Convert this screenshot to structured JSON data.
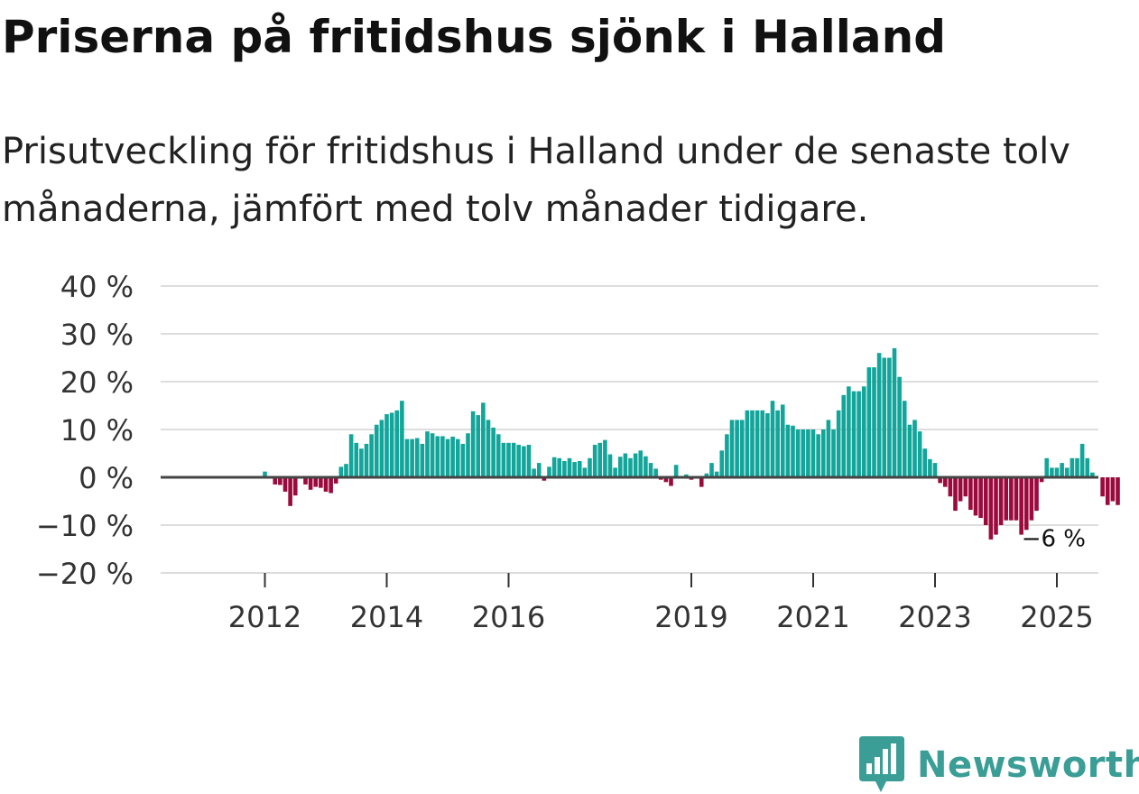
{
  "header": {
    "title": "Priserna på fritidshus sjönk i Halland",
    "subtitle": "Prisutveckling för fritidshus i Halland under de senaste tolv månaderna, jämfört med tolv månader tidigare."
  },
  "branding": {
    "name": "Newsworthy",
    "color": "#3a9d96"
  },
  "colors": {
    "positive": "#12a59a",
    "negative": "#9b0a3c",
    "zero_line": "#444444",
    "grid": "#dddddd"
  },
  "chart_data": {
    "type": "bar",
    "title": "Priserna på fritidshus sjönk i Halland",
    "xlabel": "",
    "ylabel": "",
    "unit": "%",
    "ylim": [
      -20,
      40
    ],
    "y_ticks": [
      {
        "value": 40,
        "label": "40 %"
      },
      {
        "value": 30,
        "label": "30 %"
      },
      {
        "value": 20,
        "label": "20 %"
      },
      {
        "value": 10,
        "label": "10 %"
      },
      {
        "value": 0,
        "label": "0 %"
      },
      {
        "value": -10,
        "label": "−10 %"
      },
      {
        "value": -20,
        "label": "−20 %"
      }
    ],
    "x_ticks": [
      {
        "index": 12,
        "label": "2012"
      },
      {
        "index": 36,
        "label": "2014"
      },
      {
        "index": 60,
        "label": "2016"
      },
      {
        "index": 96,
        "label": "2019"
      },
      {
        "index": 120,
        "label": "2021"
      },
      {
        "index": 144,
        "label": "2023"
      },
      {
        "index": 168,
        "label": "2025"
      }
    ],
    "start": "2011-01",
    "series": [
      {
        "name": "Prisutveckling",
        "values": [
          null,
          null,
          null,
          null,
          null,
          null,
          null,
          null,
          null,
          null,
          null,
          null,
          1.2,
          0,
          -1.5,
          -1.6,
          -3,
          -6,
          -3.8,
          0,
          -1.5,
          -2.6,
          -2,
          -2.2,
          -3,
          -3.3,
          -1.3,
          2.2,
          2.8,
          9,
          7.2,
          6,
          7,
          9,
          11,
          12,
          13.2,
          13.5,
          14,
          16,
          8,
          8,
          8.2,
          7,
          9.6,
          9.2,
          8.6,
          8.6,
          8,
          8.5,
          8,
          7,
          9.2,
          13.8,
          13,
          15.6,
          12,
          10.4,
          9,
          7.2,
          7.2,
          7.2,
          6.8,
          6.5,
          6.8,
          1.8,
          3,
          -0.7,
          2.2,
          4.2,
          4,
          3.4,
          4,
          3.2,
          3.4,
          2,
          4,
          6.8,
          7.2,
          7.8,
          4.8,
          2,
          4.3,
          5,
          4,
          5,
          5.6,
          4.4,
          3,
          1.8,
          -0.5,
          -1,
          -1.8,
          2.6,
          0,
          0.6,
          -0.5,
          0,
          -2,
          0.8,
          3,
          1.2,
          5.6,
          9,
          12,
          12,
          12,
          14,
          14,
          14,
          14,
          13.4,
          16,
          14,
          15.2,
          11,
          10.8,
          10,
          10,
          10,
          10,
          9,
          10,
          12,
          10,
          14,
          17.2,
          19,
          18,
          18,
          19,
          23,
          23,
          26,
          25,
          25,
          27,
          21,
          16,
          11,
          12,
          9.6,
          6,
          3.8,
          3,
          -1.2,
          -2,
          -4,
          -7,
          -5,
          -4,
          -6.8,
          -8,
          -8.5,
          -10,
          -13,
          -12,
          -10,
          -9,
          -9,
          -9,
          -12,
          -11,
          -9,
          -7,
          -1,
          4,
          2,
          2,
          3,
          2,
          4,
          4,
          7,
          4,
          1,
          0,
          -4,
          -5.8,
          -5,
          -5.8
        ]
      }
    ],
    "annotations": [
      {
        "label": "−6 %",
        "target": "last"
      }
    ]
  }
}
